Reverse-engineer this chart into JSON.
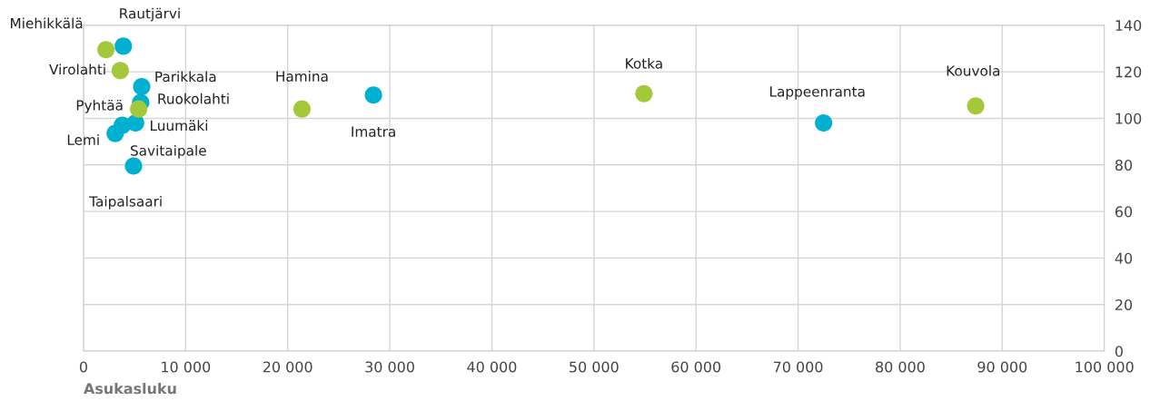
{
  "chart_data": {
    "type": "scatter",
    "xlabel": "Asukasluku",
    "series": [
      {
        "color": "#a3c93a",
        "x": [
          2200,
          3600,
          5400,
          21400,
          54900,
          87400
        ],
        "values": [
          129.5,
          120.5,
          104,
          104,
          110.6,
          105.3
        ]
      },
      {
        "color": "#00b0d0",
        "x": [
          3900,
          5700,
          5600,
          5100,
          3800,
          3100,
          4900,
          28400,
          72500
        ],
        "values": [
          131,
          113.6,
          106.8,
          98,
          97,
          93.5,
          79.5,
          110,
          98
        ]
      }
    ],
    "annotations": [
      {
        "text": "Miehikkälä",
        "x": 2200,
        "y": 129.5
      },
      {
        "text": "Rautjärvi",
        "x": 3900,
        "y": 131
      },
      {
        "text": "Virolahti",
        "x": 3600,
        "y": 120.5
      },
      {
        "text": "Parikkala",
        "x": 5700,
        "y": 113.6
      },
      {
        "text": "Ruokolahti",
        "x": 5600,
        "y": 106.8
      },
      {
        "text": "Pyhtää",
        "x": 5400,
        "y": 104
      },
      {
        "text": "Luumäki",
        "x": 5100,
        "y": 98
      },
      {
        "text": "Savitaipale",
        "x": 3800,
        "y": 97
      },
      {
        "text": "Lemi",
        "x": 3100,
        "y": 93.5
      },
      {
        "text": "Taipalsaari",
        "x": 4900,
        "y": 79.5
      },
      {
        "text": "Hamina",
        "x": 21400,
        "y": 104
      },
      {
        "text": "Imatra",
        "x": 28400,
        "y": 110
      },
      {
        "text": "Kotka",
        "x": 54900,
        "y": 110.6
      },
      {
        "text": "Lappeenranta",
        "x": 72500,
        "y": 98
      },
      {
        "text": "Kouvola",
        "x": 87400,
        "y": 105.3
      }
    ],
    "xlim": [
      0,
      100000
    ],
    "xticks": [
      0,
      {
        "value": 10000,
        "label": "10 000"
      },
      {
        "value": 20000,
        "label": "20 000"
      },
      {
        "value": 30000,
        "label": "30 000"
      },
      {
        "value": 40000,
        "label": "40 000"
      },
      {
        "value": 50000,
        "label": "50 000"
      },
      {
        "value": 60000,
        "label": "60 000"
      },
      {
        "value": 70000,
        "label": "70 000"
      },
      {
        "value": 80000,
        "label": "80 000"
      },
      {
        "value": 90000,
        "label": "90 000"
      },
      {
        "value": 100000,
        "label": "100 000"
      }
    ],
    "ylim": [
      0,
      140
    ],
    "yticks": [
      0,
      20,
      40,
      60,
      80,
      100,
      120,
      140
    ],
    "grid": true,
    "marker": "circle",
    "legend": false
  }
}
